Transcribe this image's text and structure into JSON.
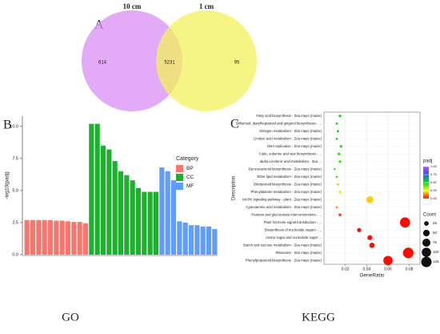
{
  "panel_labels": [
    "A",
    "B",
    "C"
  ],
  "captions": [
    "GO",
    "KEGG"
  ],
  "chart_data": [
    {
      "type": "venn",
      "sets": [
        {
          "name": "10 cm",
          "color": "#d98ef5"
        },
        {
          "name": "1 cm",
          "color": "#f2f25c"
        }
      ],
      "values": [
        614,
        5231,
        95
      ]
    },
    {
      "type": "bar",
      "ylabel": "-log10(padj)",
      "categories": [
        null,
        null,
        null,
        null,
        null,
        null,
        null,
        null,
        null,
        null,
        null,
        null,
        null,
        null,
        null,
        null,
        null,
        null,
        null,
        null,
        null,
        null,
        null,
        null,
        null,
        null,
        null,
        null,
        null,
        null,
        null,
        null,
        null
      ],
      "series": [
        {
          "name": "BP",
          "color": "#f8766d",
          "values": [
            2.7,
            2.7,
            2.7,
            2.7,
            2.7,
            2.65,
            2.65,
            2.6,
            2.55,
            2.55,
            2.45,
            null,
            null,
            null,
            null,
            null,
            null,
            null,
            null,
            null,
            null,
            null,
            null,
            null,
            null,
            null,
            null,
            null,
            null,
            null,
            null,
            null,
            null
          ]
        },
        {
          "name": "CC",
          "color": "#1db02e",
          "values": [
            null,
            null,
            null,
            null,
            null,
            null,
            null,
            null,
            null,
            null,
            null,
            10.2,
            10.2,
            8.5,
            8.2,
            7.3,
            6.5,
            6.2,
            5.8,
            5.2,
            4.9,
            4.9,
            4.9,
            null,
            null,
            null,
            null,
            null,
            null,
            null,
            null,
            null,
            null
          ]
        },
        {
          "name": "MF",
          "color": "#619cff",
          "values": [
            null,
            null,
            null,
            null,
            null,
            null,
            null,
            null,
            null,
            null,
            null,
            null,
            null,
            null,
            null,
            null,
            null,
            null,
            null,
            null,
            null,
            null,
            null,
            6.8,
            6.5,
            5.8,
            2.6,
            2.5,
            2.3,
            2.3,
            2.2,
            2.2,
            2.0
          ]
        }
      ],
      "ylim": [
        0,
        10.8
      ],
      "yticks": [
        {
          "value": 0,
          "label": "0.0"
        },
        2.5,
        {
          "value": 5,
          "label": "5.0"
        },
        7.5,
        {
          "value": 10,
          "label": "10.0"
        }
      ],
      "legend_title": "Category",
      "legend": "right"
    },
    {
      "type": "dot",
      "ylabel": "Description",
      "xlabel": "GeneRatio",
      "categories": [
        "Fatty acid biosynthesis - Zea mays (maize)",
        "Stilbenoid, diarylheptanoid and gingerol biosynthesis - ...",
        "Nitrogen metabolism - Zea mays (maize)",
        "Linoleic acid metabolism - Zea mays (maize)",
        "DNA replication - Zea mays (maize)",
        "Cutin, suberine and wax biosynthesis - ...",
        "alpha-Linolenic acid metabolism - Zea ...",
        "Benzoxazinoid biosynthesis - Zea mays (maize)",
        "Ether lipid metabolism - Zea mays (maize)",
        "Diterpenoid biosynthesis - Zea mays (maize)",
        "Phenylalanine metabolism - Zea mays (maize)",
        "MAPK signaling pathway - plant - Zea mays (maize)",
        "Cyanoamino acid metabolism - Zea mays (maize)",
        "Pentose and glucuronate interconversions - ...",
        "Plant hormone signal transduction - ...",
        "Biosynthesis of nucleotide sugars - ...",
        "Amino sugar and nucleotide sugar ...",
        "Starch and sucrose metabolism - Zea mays (maize)",
        "Ribosome - Zea mays (maize)",
        "Phenylpropanoid biosynthesis - Zea mays (maize)"
      ],
      "x": [
        0.015,
        0.012,
        0.013,
        0.012,
        0.016,
        0.014,
        0.015,
        0.01,
        0.012,
        0.013,
        0.015,
        0.043,
        0.012,
        0.015,
        0.076,
        0.033,
        0.043,
        0.045,
        0.079,
        0.06
      ],
      "size": [
        8,
        5,
        6,
        5,
        9,
        7,
        8,
        4,
        5,
        6,
        8,
        55,
        6,
        9,
        120,
        20,
        28,
        32,
        130,
        100
      ],
      "color_values": [
        0.5,
        0.55,
        0.5,
        0.55,
        0.45,
        0.5,
        0.45,
        0.5,
        0.45,
        0.35,
        0.3,
        0.2,
        0.15,
        0.05,
        0.01,
        0.01,
        0.01,
        0.01,
        0.01,
        0.01
      ],
      "xlim": [
        0,
        0.09
      ],
      "xticks": [
        0.02,
        0.04,
        0.06,
        0.08
      ],
      "grid": true,
      "color_scale": {
        "title": "padj",
        "colors": [
          "#ff0000",
          "#ffff00",
          "#00e000",
          "#2060ff",
          "#c040ff"
        ],
        "ticks": [
          {
            "value": 0,
            "label": "0.00"
          },
          0.25,
          {
            "value": 0.5,
            "label": "0.50"
          },
          0.75,
          {
            "value": 1,
            "label": "1.00"
          }
        ]
      },
      "size_legend": {
        "title": "Count",
        "ticks": [
          25,
          50,
          75,
          100,
          125
        ]
      }
    }
  ]
}
